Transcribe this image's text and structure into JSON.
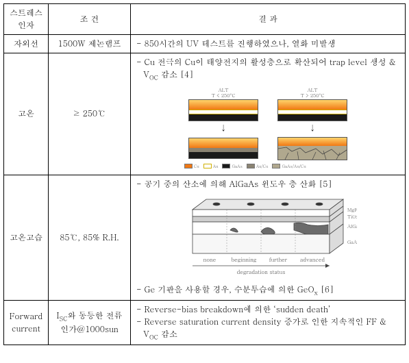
{
  "headers": {
    "col1_line1": "스트레스",
    "col1_line2": "인자",
    "col2": "조 건",
    "col3": "결 과"
  },
  "rows": {
    "uv": {
      "factor": "자외선",
      "condition": "1500W 제논램프",
      "result": "- 850시간의 UV 테스트를 진행하였으나, 열화 미발생"
    },
    "hightemp": {
      "factor": "고온",
      "condition": "≥ 250℃",
      "result_top": "- Cu 전극의 Cu이 태양전지의 활성층으로 확산되어 trap level 생성 & V",
      "result_top_sub": "OC",
      "result_top_tail": " 감소 [4]",
      "alt_left": "ALT\nT < 250°C",
      "alt_right": "ALT\nT > 250°C",
      "legend": [
        "Cu",
        "Au",
        "GaAs",
        "Au/Cu",
        "GaAs/Au/Cu"
      ],
      "colors": {
        "cu": "#f07814",
        "cu_grad_top": "#ffd36b",
        "au": "#ffffff",
        "au_border": "#d0b000",
        "gaas": "#1a1a1a",
        "aucu": "#8a8372",
        "mix": "#b0a88e"
      }
    },
    "humid": {
      "factor": "고온고습",
      "condition": "85℃, 85% R.H.",
      "result_top": "-  공기 중의 산소에 의해 AlGaAs 윈도우 층 산화 [5]",
      "result_bottom_a": "- Ge 기판을 사용할 경우, 수분투습에 의한 GeO",
      "result_bottom_sub": "x",
      "result_bottom_tail": " [6]",
      "stages": [
        "none",
        "beginning",
        "further",
        "advanced"
      ],
      "xlabel": "degradation status",
      "layer_labels": [
        "MgF₂",
        "TiOx",
        "AlGaAs",
        "GaAs"
      ],
      "colors": {
        "top": "#e8e8e8",
        "mgf": "#ffffff",
        "tio": "#cfcfcf",
        "algaas_ok": "#ffffff",
        "algaas_deg": "#6b6b6b",
        "gaas": "#f7f7f7",
        "edge": "#444444"
      }
    },
    "fwd": {
      "factor_line1": "Forward",
      "factor_line2": "current",
      "condition_line1_a": "I",
      "condition_line1_sub": "SC",
      "condition_line1_b": "와 동등한 전류",
      "condition_line2": "인가@1000sun",
      "result_1": "- Reverse-bias breakdown에 의한 ‘sudden death’",
      "result_2a": "- Reverse saturation current density 증가로 인한 지속적인 FF & V",
      "result_2sub": "OC",
      "result_2b": " 감소"
    }
  }
}
